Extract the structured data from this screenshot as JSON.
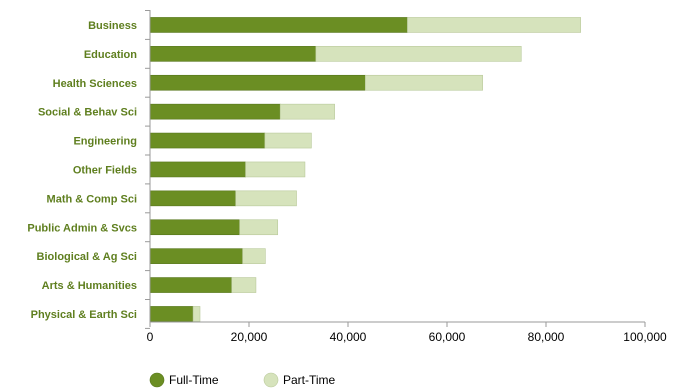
{
  "chart_data": {
    "type": "bar",
    "orientation": "horizontal",
    "stacked": true,
    "categories": [
      "Business",
      "Education",
      "Health Sciences",
      "Social & Behav Sci",
      "Engineering",
      "Other Fields",
      "Math & Comp Sci",
      "Public Admin & Svcs",
      "Biological & Ag Sci",
      "Arts & Humanities",
      "Physical & Earth Sci"
    ],
    "series": [
      {
        "name": "Full-Time",
        "values": [
          52000,
          33500,
          43500,
          26300,
          23200,
          19300,
          17300,
          18100,
          18700,
          16500,
          8700
        ],
        "color": "#6b8e23"
      },
      {
        "name": "Part-Time",
        "values": [
          35000,
          41500,
          23700,
          11000,
          9400,
          12000,
          12300,
          7700,
          4600,
          4900,
          1400
        ],
        "color": "#d6e3bc"
      }
    ],
    "xlim": [
      0,
      100000
    ],
    "xticks": [
      0,
      20000,
      40000,
      60000,
      80000,
      100000
    ],
    "xtick_labels": [
      "0",
      "20,000",
      "40,000",
      "60,000",
      "80,000",
      "100,000"
    ],
    "label_color": "#5f7f1f",
    "grid": false,
    "legend_position": "bottom-left"
  }
}
